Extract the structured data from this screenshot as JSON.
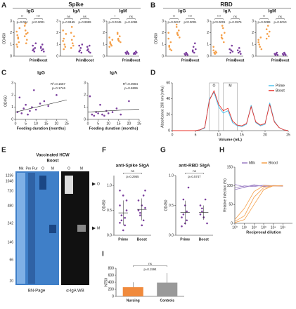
{
  "figure": {
    "panels": [
      "A",
      "B",
      "C",
      "D",
      "E",
      "F",
      "G",
      "H",
      "I"
    ],
    "headers": [
      "Spike",
      "RBD"
    ],
    "gel": {
      "title": "Vaccinated HCW",
      "subtitle": "Boost",
      "lanes": [
        "Mk",
        "Pre Pur",
        "O",
        "M",
        "O",
        "M"
      ],
      "captions": [
        "BN-Page",
        "α-IgA WB"
      ],
      "markers": [
        "1236",
        "1048",
        "720",
        "480",
        "242",
        "146",
        "66",
        "20"
      ],
      "arrows": [
        "O",
        "M"
      ]
    }
  },
  "chart_data": [
    {
      "type": "dot",
      "title": "IgG",
      "ylabel": "OD450",
      "categories": [
        null,
        null,
        "Prime",
        "Boost"
      ],
      "colors": [
        "#f5a04a",
        "#f5a04a",
        "#7b3f9e",
        "#7b3f9e"
      ],
      "groups": [
        [
          2.1,
          1.8,
          1.5,
          1.2,
          2.4,
          1.0,
          0.8,
          1.6
        ],
        [
          2.6,
          2.2,
          1.9,
          1.4,
          2.0,
          1.7,
          2.8,
          1.1
        ],
        [
          0.9,
          0.6,
          0.4,
          0.7,
          1.1,
          0.5
        ],
        [
          0.8,
          0.5,
          1.0,
          0.6,
          0.4,
          0.7
        ]
      ],
      "ylim": [
        0,
        3
      ],
      "yticks": [
        0,
        1,
        2,
        3
      ],
      "pvalues": [
        {
          "stars": "**",
          "label": "p=0.004"
        },
        {
          "stars": "***",
          "label": "p<0.0001"
        }
      ]
    },
    {
      "type": "dot",
      "title": "IgA",
      "categories": [
        null,
        null,
        "Prime",
        "Boost"
      ],
      "colors": [
        "#f5a04a",
        "#f5a04a",
        "#7b3f9e",
        "#7b3f9e"
      ],
      "groups": [
        [
          2.2,
          1.5,
          1.0,
          0.8,
          1.9,
          1.3,
          0.6
        ],
        [
          2.0,
          1.4,
          1.1,
          0.9,
          1.7,
          0.7,
          2.5
        ],
        [
          0.9,
          0.5,
          0.7,
          0.3,
          1.0,
          0.4
        ],
        [
          0.8,
          0.6,
          0.4,
          0.9,
          0.3,
          0.5
        ]
      ],
      "ylim": [
        0,
        3
      ],
      "yticks": [
        0,
        1,
        2,
        3
      ],
      "pvalues": [
        {
          "stars": "ns",
          "label": "p=0.9165"
        },
        {
          "stars": "ns",
          "label": "p=0.9999"
        }
      ]
    },
    {
      "type": "dot",
      "title": "IgM",
      "categories": [
        null,
        null,
        "Prime",
        "Boost"
      ],
      "colors": [
        "#f5a04a",
        "#f5a04a",
        "#7b3f9e",
        "#7b3f9e"
      ],
      "groups": [
        [
          1.6,
          1.2,
          1.0,
          0.9,
          1.4,
          0.8,
          1.1
        ],
        [
          1.9,
          1.5,
          1.3,
          1.7,
          1.2,
          2.0,
          1.4
        ],
        [
          0.3,
          0.2,
          0.4,
          0.3,
          0.2
        ],
        [
          0.2,
          0.3,
          0.2,
          0.4,
          0.3
        ]
      ],
      "ylim": [
        0,
        3
      ],
      "yticks": [
        0,
        1,
        2,
        3
      ],
      "pvalues": [
        {
          "stars": "*",
          "label": "p=0.0245"
        },
        {
          "stars": "ns",
          "label": "p=0.4084"
        }
      ]
    },
    {
      "type": "dot",
      "title": "IgG",
      "ylabel": "OD450",
      "categories": [
        null,
        null,
        "Prime",
        "Boost"
      ],
      "colors": [
        "#f5a04a",
        "#f5a04a",
        "#7b3f9e",
        "#7b3f9e"
      ],
      "groups": [
        [
          1.5,
          0.9,
          0.6,
          1.2,
          0.5,
          2.0,
          0.8
        ],
        [
          2.5,
          2.0,
          1.8,
          2.2,
          1.6,
          2.7,
          1.9
        ],
        [
          0.2,
          0.1,
          0.3,
          0.2,
          0.1
        ],
        [
          0.5,
          0.8,
          0.3,
          1.1,
          0.6,
          0.4
        ]
      ],
      "ylim": [
        0,
        3
      ],
      "yticks": [
        0,
        1,
        2,
        3
      ],
      "pvalues": [
        {
          "stars": "**",
          "label": "p=0.0017"
        },
        {
          "stars": "***",
          "label": "p<0.0001"
        }
      ]
    },
    {
      "type": "dot",
      "title": "IgA",
      "categories": [
        null,
        null,
        "Prime",
        "Boost"
      ],
      "colors": [
        "#f5a04a",
        "#f5a04a",
        "#7b3f9e",
        "#7b3f9e"
      ],
      "groups": [
        [
          0.5,
          0.3,
          0.2,
          0.4,
          0.3,
          0.8
        ],
        [
          1.8,
          1.5,
          2.4,
          1.2,
          2.0,
          1.6,
          2.6
        ],
        [
          0.6,
          0.3,
          0.5,
          0.9,
          0.4
        ],
        [
          0.5,
          0.3,
          0.7,
          0.4,
          0.2
        ]
      ],
      "ylim": [
        0,
        3
      ],
      "yticks": [
        0,
        1,
        2,
        3
      ],
      "pvalues": [
        {
          "stars": "***",
          "label": "p<0.0001"
        },
        {
          "stars": "ns",
          "label": "p=0.3575"
        }
      ]
    },
    {
      "type": "dot",
      "title": "IgM",
      "categories": [
        null,
        null,
        "Prime",
        "Boost"
      ],
      "colors": [
        "#f5a04a",
        "#f5a04a",
        "#7b3f9e",
        "#7b3f9e"
      ],
      "groups": [
        [
          1.4,
          1.0,
          0.8,
          1.6,
          0.6,
          1.2
        ],
        [
          2.3,
          1.9,
          2.6,
          1.7,
          2.1,
          1.5
        ],
        [
          0.2,
          0.1,
          0.2,
          0.3,
          0.1
        ],
        [
          0.2,
          0.1,
          0.3,
          0.2,
          0.1
        ]
      ],
      "ylim": [
        0,
        3
      ],
      "yticks": [
        0,
        1,
        2,
        3
      ],
      "pvalues": [
        {
          "stars": "**",
          "label": "p=0.0089"
        },
        {
          "stars": "ns",
          "label": "p=0.5010"
        }
      ]
    },
    {
      "type": "scatter",
      "title": "IgG",
      "ylabel": "OD450",
      "xlabel": "Feeding duration (months)",
      "color": "#7b3f9e",
      "x": [
        1,
        2,
        3,
        4,
        5,
        6,
        7,
        8,
        9,
        10,
        12,
        14,
        16,
        20
      ],
      "y": [
        0.6,
        1.8,
        0.5,
        0.9,
        1.2,
        0.4,
        0.7,
        1.0,
        2.4,
        0.8,
        1.3,
        1.5,
        1.1,
        2.0
      ],
      "trend": {
        "x": [
          0,
          25
        ],
        "y": [
          0.6,
          1.6
        ]
      },
      "annotations": [
        "R²=0.1557",
        "p=0.1746"
      ],
      "xlim": [
        0,
        25
      ],
      "xticks": [
        0,
        5,
        10,
        15,
        20,
        25
      ],
      "ylim": [
        0,
        3
      ],
      "yticks": [
        0,
        1,
        2,
        3
      ]
    },
    {
      "type": "scatter",
      "title": "IgA",
      "xlabel": "Feeding duration (months)",
      "color": "#7b3f9e",
      "x": [
        1,
        2,
        3,
        4,
        5,
        6,
        7,
        8,
        9,
        10,
        12,
        14,
        16,
        20
      ],
      "y": [
        1.9,
        0.4,
        0.3,
        0.6,
        0.5,
        1.2,
        0.4,
        0.3,
        0.7,
        0.5,
        0.6,
        0.9,
        0.4,
        1.5
      ],
      "trend": {
        "x": [
          0,
          25
        ],
        "y": [
          0.6,
          0.85
        ]
      },
      "annotations": [
        "R²=0.0084",
        "p=0.6896"
      ],
      "xlim": [
        0,
        25
      ],
      "xticks": [
        0,
        5,
        10,
        15,
        20,
        25
      ],
      "ylim": [
        0,
        3
      ],
      "yticks": [
        0,
        1,
        2,
        3
      ]
    },
    {
      "type": "line",
      "ylabel": "Absorbance 280 nm (mAu)",
      "xlabel": "Volume (mL)",
      "x": [
        0,
        1,
        2,
        3,
        4,
        5,
        6,
        7,
        8,
        9,
        10,
        11,
        12,
        13,
        14,
        15,
        16,
        17,
        18,
        19,
        20,
        21,
        22,
        23,
        24,
        25
      ],
      "series": [
        {
          "name": "Prime",
          "color": "#4fc3ee",
          "values": [
            0,
            0,
            0,
            0,
            0,
            0,
            1,
            3,
            40,
            48,
            30,
            22,
            25,
            10,
            6,
            5,
            8,
            32,
            10,
            6,
            8,
            35,
            12,
            4,
            1,
            0
          ]
        },
        {
          "name": "Boost",
          "color": "#e8302a",
          "values": [
            0,
            0,
            0,
            0,
            0,
            0,
            1,
            4,
            38,
            50,
            33,
            25,
            28,
            12,
            7,
            6,
            9,
            30,
            11,
            7,
            9,
            33,
            11,
            4,
            1,
            0
          ]
        }
      ],
      "regions": [
        {
          "label": "O",
          "range": [
            8,
            10
          ]
        },
        {
          "label": "M",
          "range": [
            11,
            14
          ]
        }
      ],
      "xlim": [
        0,
        25
      ],
      "xticks": [
        0,
        5,
        10,
        15,
        20,
        25
      ],
      "ylim": [
        0,
        60
      ],
      "yticks": [
        0,
        20,
        40,
        60
      ],
      "legend": "top-right"
    },
    {
      "type": "dot",
      "title": "anti-Spike SIgA",
      "ylabel": "OD450",
      "categories": [
        "Prime",
        "Boost"
      ],
      "colors": [
        "#7b3f9e",
        "#7b3f9e"
      ],
      "groups": [
        [
          0.6,
          0.3,
          0.8,
          0.2,
          0.5,
          0.9,
          0.4,
          0.1,
          0.35,
          0.7,
          0.25
        ],
        [
          0.7,
          0.4,
          0.6,
          0.3,
          0.9,
          0.5,
          0.45,
          0.2,
          0.8,
          0.55
        ]
      ],
      "means": [
        0.45,
        0.52
      ],
      "sd": [
        0.25,
        0.22
      ],
      "ylim": [
        0,
        1.2
      ],
      "yticks": [
        {
          "value": 0,
          "label": "0.0"
        },
        0.5,
        {
          "value": 1,
          "label": "1.0"
        }
      ],
      "pvalues": [
        {
          "stars": "ns",
          "label": "p=0.2955"
        }
      ]
    },
    {
      "type": "dot",
      "title": "anti-RBD SIgA",
      "ylabel": "OD450",
      "categories": [
        "Prime",
        "Boost"
      ],
      "colors": [
        "#7b3f9e",
        "#7b3f9e"
      ],
      "groups": [
        [
          0.3,
          0.6,
          0.2,
          0.4,
          0.8,
          0.15,
          0.35,
          0.5,
          0.25
        ],
        [
          0.35,
          0.45,
          0.3,
          0.6,
          0.2,
          0.5,
          0.4,
          0.3
        ]
      ],
      "means": [
        0.38,
        0.38
      ],
      "sd": [
        0.2,
        0.12
      ],
      "ylim": [
        0,
        1
      ],
      "yticks": [
        {
          "value": 0,
          "label": "0.0"
        },
        0.5,
        {
          "value": 1,
          "label": "1.0"
        }
      ],
      "pvalues": [
        {
          "stars": "ns",
          "label": "p=0.5747"
        }
      ]
    },
    {
      "type": "curves",
      "ylabel": "Relative Infection (%)",
      "xlabel": "Reciprocal dilution",
      "xlog": true,
      "x": [
        1,
        10,
        100,
        1000,
        10000,
        100000
      ],
      "series": [
        {
          "name": "Milk",
          "color": "#9a7cc4",
          "curves": [
            [
              95,
              100,
              98,
              102,
              100,
              99
            ],
            [
              104,
              97,
              101,
              99,
              100,
              101
            ],
            [
              90,
              96,
              103,
              98,
              101,
              100
            ]
          ]
        },
        {
          "name": "Blood",
          "color": "#f5a04a",
          "curves": [
            [
              5,
              20,
              70,
              95,
              100,
              100
            ],
            [
              10,
              40,
              85,
              100,
              100,
              100
            ],
            [
              2,
              10,
              50,
              90,
              100,
              100
            ]
          ]
        }
      ],
      "xlim": [
        1,
        1000000
      ],
      "xticks": [
        {
          "value": 1,
          "label": "10⁰"
        },
        {
          "value": 10,
          "label": "10¹"
        },
        {
          "value": 100,
          "label": "10²"
        },
        {
          "value": 1000,
          "label": "10³"
        },
        {
          "value": 10000,
          "label": "10⁴"
        },
        {
          "value": 100000,
          "label": "10⁵"
        }
      ],
      "ylim": [
        0,
        150
      ],
      "yticks": [
        0,
        50,
        100,
        150
      ],
      "legend": "top"
    },
    {
      "type": "barerr",
      "ylabel": "NT50",
      "categories": [
        "Nursing",
        "Controls"
      ],
      "color": "#f08a3c",
      "values": [
        260,
        390
      ],
      "errors": [
        140,
        270
      ],
      "ylim": [
        0,
        800
      ],
      "yticks": [
        0,
        200,
        400,
        600,
        800
      ],
      "pvalues": [
        {
          "stars": "ns",
          "label": "p=0.1594"
        }
      ]
    }
  ]
}
